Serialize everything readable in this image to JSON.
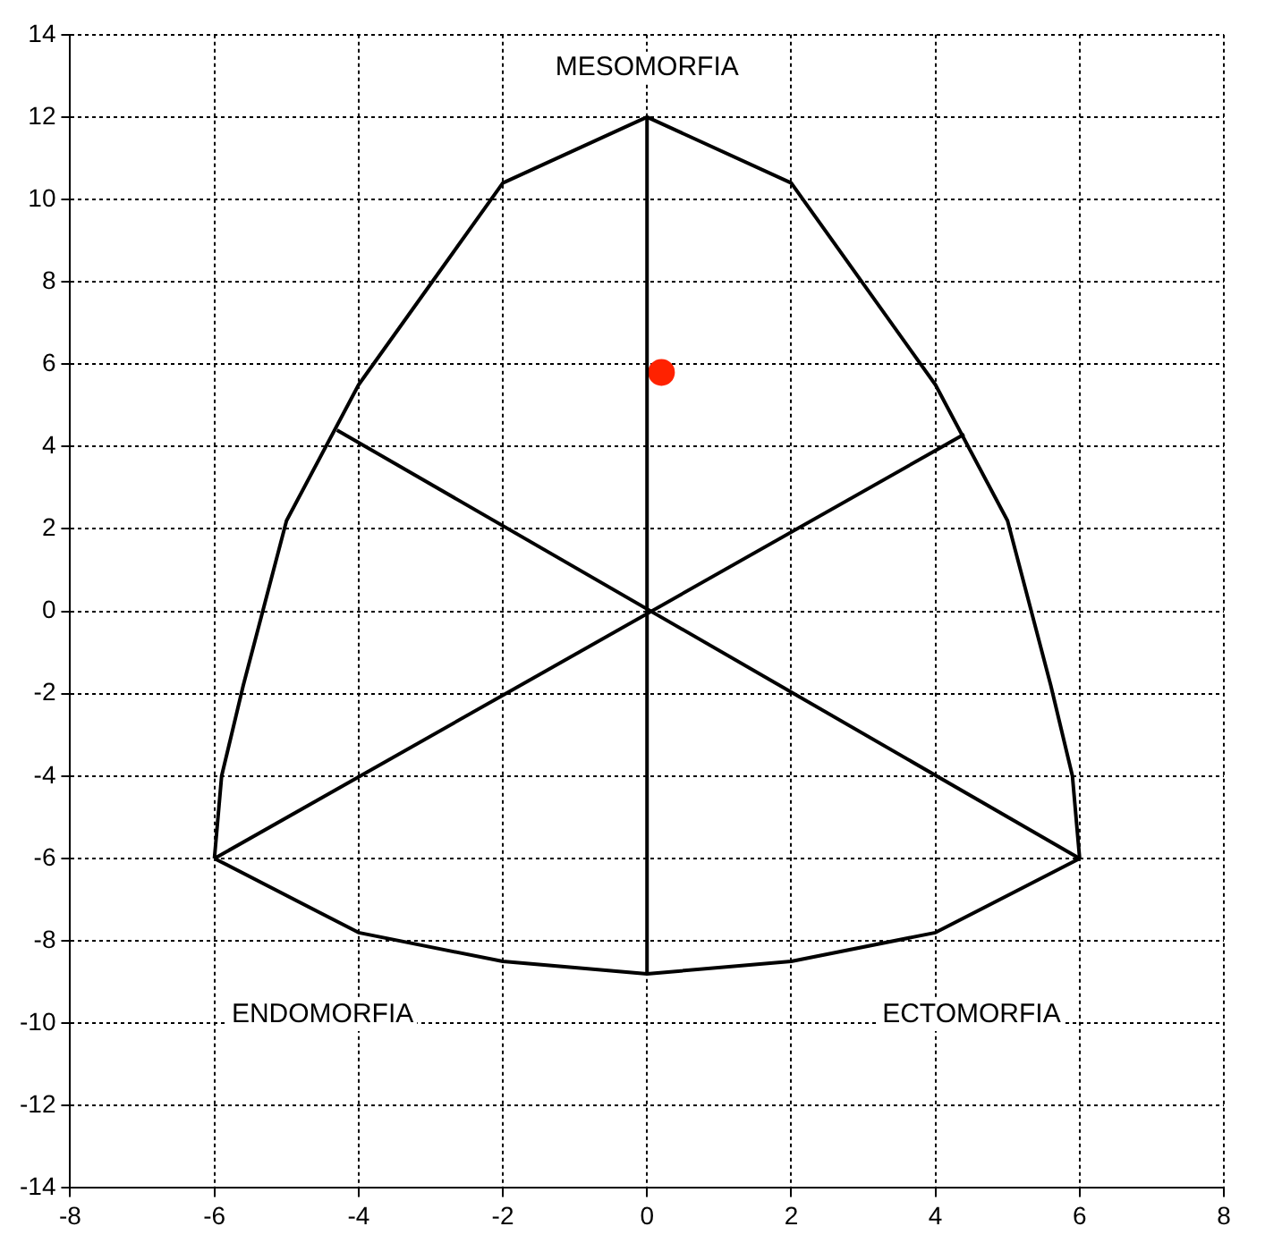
{
  "chart_data": {
    "type": "line",
    "xlim": [
      -8,
      8
    ],
    "ylim": [
      -14,
      14
    ],
    "xticks": [
      -8,
      -6,
      -4,
      -2,
      0,
      2,
      4,
      6,
      8
    ],
    "yticks": [
      -14,
      -12,
      -10,
      -8,
      -6,
      -4,
      -2,
      0,
      2,
      4,
      6,
      8,
      10,
      12,
      14
    ],
    "grid": true,
    "legend": false,
    "series": [
      {
        "color": "#000000",
        "marker": "none",
        "x": [
          -6,
          -5.9,
          -5.6,
          -5,
          -4,
          -2,
          0,
          2,
          4,
          5,
          5.6,
          5.9,
          6
        ],
        "values": [
          -6,
          -4,
          -1.8,
          2.2,
          5.5,
          10.4,
          12,
          10.4,
          5.5,
          2.2,
          -1.8,
          -4,
          -6
        ]
      },
      {
        "color": "#000000",
        "marker": "none",
        "x": [
          -6,
          -4,
          -2,
          0,
          2,
          4,
          6
        ],
        "values": [
          -6,
          -7.8,
          -8.5,
          -8.8,
          -8.5,
          -7.8,
          -6
        ]
      },
      {
        "color": "#000000",
        "marker": "none",
        "x": [
          0,
          0
        ],
        "values": [
          -8.8,
          12
        ]
      },
      {
        "color": "#000000",
        "marker": "none",
        "x": [
          -6,
          4.4
        ],
        "values": [
          -6,
          4.3
        ]
      },
      {
        "color": "#000000",
        "marker": "none",
        "x": [
          -4.3,
          6
        ],
        "values": [
          4.4,
          -6
        ]
      },
      {
        "type": "scatter",
        "color": "#ff2200",
        "marker": "circle",
        "x": [
          0.2
        ],
        "values": [
          5.8
        ]
      }
    ],
    "annotations": [
      "MESOMORFIA",
      "ENDOMORFIA",
      "ECTOMORFIA"
    ]
  }
}
